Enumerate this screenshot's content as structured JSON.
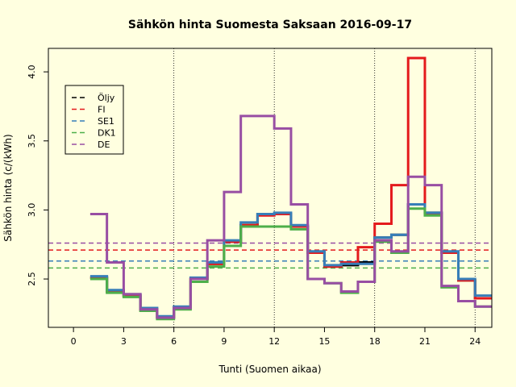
{
  "chart_data": {
    "type": "line",
    "step": true,
    "title": "Sähkön hinta Suomesta Saksaan 2016-09-17",
    "xlabel": "Tunti (Suomen aikaa)",
    "ylabel": "Sähkön hinta (c/(kWh)",
    "xlim": [
      -1.5,
      25
    ],
    "ylim": [
      2.15,
      4.17
    ],
    "x_ticks": [
      0,
      3,
      6,
      9,
      12,
      15,
      18,
      21,
      24
    ],
    "y_ticks": [
      2.5,
      3.0,
      3.5,
      4.0
    ],
    "y_tick_labels": [
      "2.5",
      "3.0",
      "3.5",
      "4.0"
    ],
    "vlines": [
      6,
      12,
      18,
      24
    ],
    "legend_position": "top-left",
    "x": [
      1,
      2,
      3,
      4,
      5,
      6,
      7,
      8,
      9,
      10,
      11,
      12,
      13,
      14,
      15,
      16,
      17,
      18,
      19,
      20,
      21,
      22,
      23,
      24
    ],
    "series": [
      {
        "name": "Öljy",
        "color": "#000000",
        "values": [
          2.51,
          2.41,
          2.38,
          2.28,
          2.22,
          2.29,
          2.5,
          2.61,
          2.77,
          2.89,
          2.97,
          2.97,
          2.88,
          2.69,
          2.59,
          2.6,
          2.62,
          2.8,
          2.82,
          3.04,
          2.98,
          2.69,
          2.49,
          2.36
        ],
        "mean": 2.63
      },
      {
        "name": "FI",
        "color": "#E41A1C",
        "values": [
          2.51,
          2.41,
          2.38,
          2.28,
          2.22,
          2.29,
          2.5,
          2.61,
          2.77,
          2.89,
          2.96,
          2.97,
          2.88,
          2.69,
          2.59,
          2.62,
          2.73,
          2.9,
          3.18,
          4.1,
          2.97,
          2.69,
          2.49,
          2.36
        ],
        "mean": 2.71
      },
      {
        "name": "SE1",
        "color": "#377EB8",
        "values": [
          2.52,
          2.42,
          2.39,
          2.29,
          2.23,
          2.3,
          2.51,
          2.62,
          2.78,
          2.91,
          2.97,
          2.98,
          2.89,
          2.7,
          2.6,
          2.61,
          2.61,
          2.8,
          2.82,
          3.04,
          2.98,
          2.7,
          2.5,
          2.38
        ],
        "mean": 2.63
      },
      {
        "name": "DK1",
        "color": "#4DAF4A",
        "values": [
          2.5,
          2.4,
          2.37,
          2.27,
          2.21,
          2.28,
          2.48,
          2.59,
          2.74,
          2.88,
          2.88,
          2.88,
          2.86,
          2.5,
          2.47,
          2.4,
          2.48,
          2.77,
          2.69,
          3.01,
          2.96,
          2.44,
          2.34,
          2.3
        ],
        "mean": 2.58
      },
      {
        "name": "DE",
        "color": "#984EA3",
        "values": [
          2.97,
          2.62,
          2.39,
          2.28,
          2.22,
          2.29,
          2.5,
          2.78,
          3.13,
          3.68,
          3.68,
          3.59,
          3.04,
          2.5,
          2.47,
          2.41,
          2.48,
          2.78,
          2.7,
          3.24,
          3.18,
          2.45,
          2.34,
          2.3
        ],
        "mean": 2.76
      }
    ]
  }
}
